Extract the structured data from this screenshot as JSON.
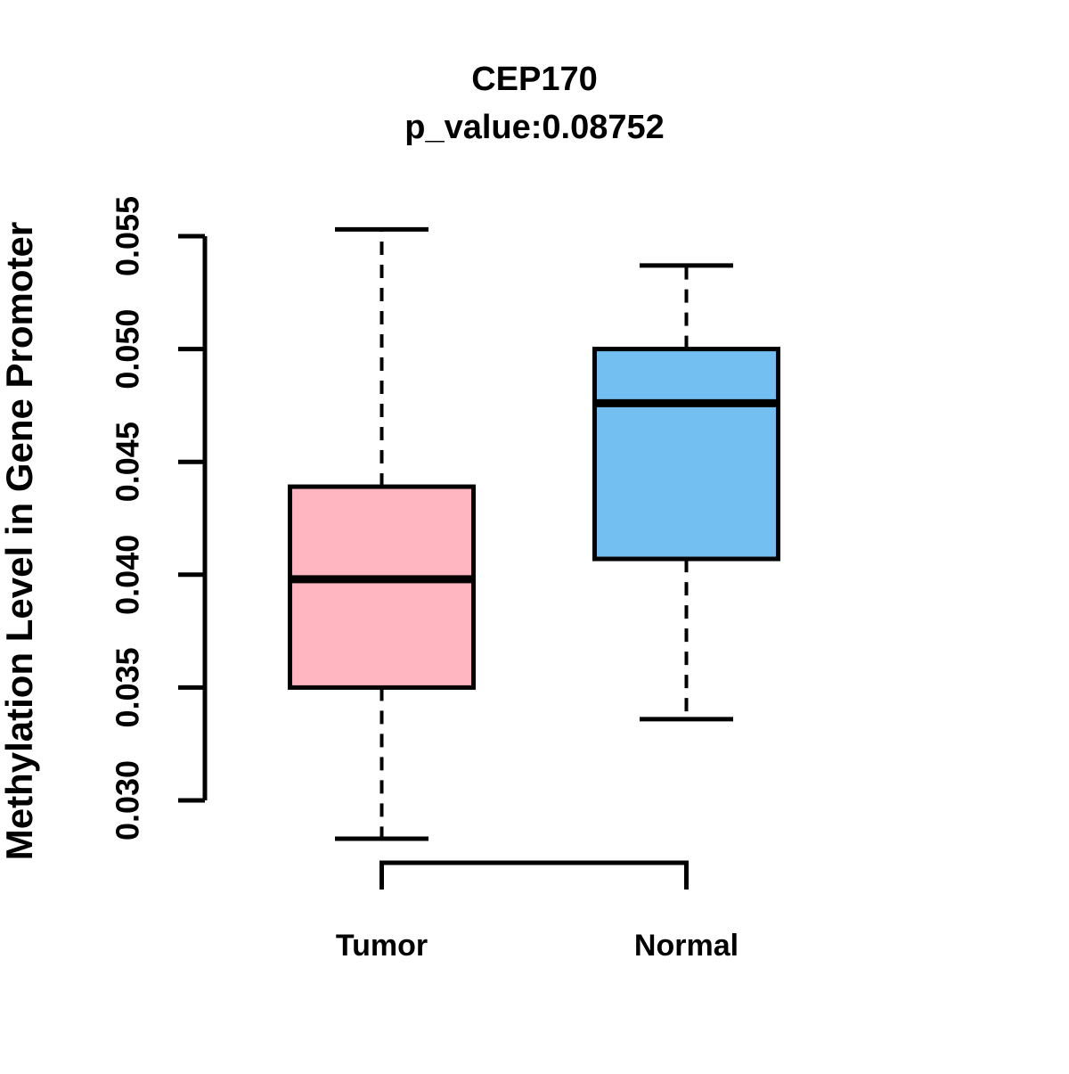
{
  "chart_data": {
    "type": "boxplot",
    "title": "CEP170",
    "subtitle": "p_value:0.08752",
    "ylabel": "Methylation Level in Gene Promoter",
    "xlabel": "",
    "categories": [
      "Tumor",
      "Normal"
    ],
    "ytick_labels": [
      "0.030",
      "0.035",
      "0.040",
      "0.045",
      "0.050",
      "0.055"
    ],
    "ylim": [
      0.0283,
      0.0553
    ],
    "grid": false,
    "legend": "none",
    "series": [
      {
        "name": "Tumor",
        "fill_color": "#FFB6C1",
        "whisker_low": 0.0283,
        "q1": 0.035,
        "median": 0.0398,
        "q3": 0.0439,
        "whisker_high": 0.0553,
        "outliers": []
      },
      {
        "name": "Normal",
        "fill_color": "#74BFF2",
        "whisker_low": 0.0336,
        "q1": 0.0407,
        "median": 0.0476,
        "q3": 0.05,
        "whisker_high": 0.0537,
        "outliers": []
      }
    ],
    "colors": {
      "stroke": "#000000",
      "background": "#FFFFFF"
    }
  }
}
